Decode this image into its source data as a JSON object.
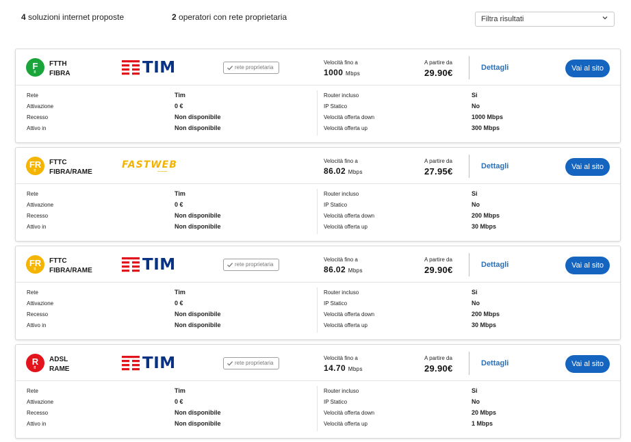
{
  "summary": {
    "count_solutions": "4",
    "solutions_text": "soluzioni internet proposte",
    "count_operators": "2",
    "operators_text": "operatori con rete proprietaria"
  },
  "filter": {
    "label": "Filtra risultati",
    "icon": "chevron-down-icon"
  },
  "labels": {
    "speed_label": "Velocità fino a",
    "price_label": "A partire da",
    "details": "Dettagli",
    "cta": "Vai al sito",
    "own_network": "rete proprietaria",
    "rows_left": [
      "Rete",
      "Attivazione",
      "Recesso",
      "Attivo in"
    ],
    "rows_right": [
      "Router incluso",
      "IP Statico",
      "Velocità offerta down",
      "Velocità offerta up"
    ]
  },
  "colors": {
    "green": "#1aa53a",
    "yellow": "#f5b400",
    "red": "#e3131b",
    "tim_blue": "#0a3282",
    "tim_red": "#e3131b",
    "cta_blue": "#1565c0"
  },
  "offers": [
    {
      "badge": "F",
      "badge_color": "green",
      "tech": "FTTH",
      "tech_type": "FIBRA",
      "operator_logo": "TIM",
      "own_network": true,
      "speed": "1000",
      "speed_unit": "Mbps",
      "price": "29.90€",
      "left": [
        "Tim",
        "0 €",
        "Non disponibile",
        "Non disponibile"
      ],
      "right": [
        "Si",
        "No",
        "1000 Mbps",
        "300 Mbps"
      ]
    },
    {
      "badge": "FR",
      "badge_color": "yellow",
      "tech": "FTTC",
      "tech_type": "FIBRA/RAME",
      "operator_logo": "FASTWEB",
      "own_network": false,
      "speed": "86.02",
      "speed_unit": "Mbps",
      "price": "27.95€",
      "left": [
        "Tim",
        "0 €",
        "Non disponibile",
        "Non disponibile"
      ],
      "right": [
        "Si",
        "No",
        "200 Mbps",
        "30 Mbps"
      ]
    },
    {
      "badge": "FR",
      "badge_color": "yellow",
      "tech": "FTTC",
      "tech_type": "FIBRA/RAME",
      "operator_logo": "TIM",
      "own_network": true,
      "speed": "86.02",
      "speed_unit": "Mbps",
      "price": "29.90€",
      "left": [
        "Tim",
        "0 €",
        "Non disponibile",
        "Non disponibile"
      ],
      "right": [
        "Si",
        "No",
        "200 Mbps",
        "30 Mbps"
      ]
    },
    {
      "badge": "R",
      "badge_color": "red",
      "tech": "ADSL",
      "tech_type": "RAME",
      "operator_logo": "TIM",
      "own_network": true,
      "speed": "14.70",
      "speed_unit": "Mbps",
      "price": "29.90€",
      "left": [
        "Tim",
        "0 €",
        "Non disponibile",
        "Non disponibile"
      ],
      "right": [
        "Si",
        "No",
        "20 Mbps",
        "1 Mbps"
      ]
    }
  ]
}
